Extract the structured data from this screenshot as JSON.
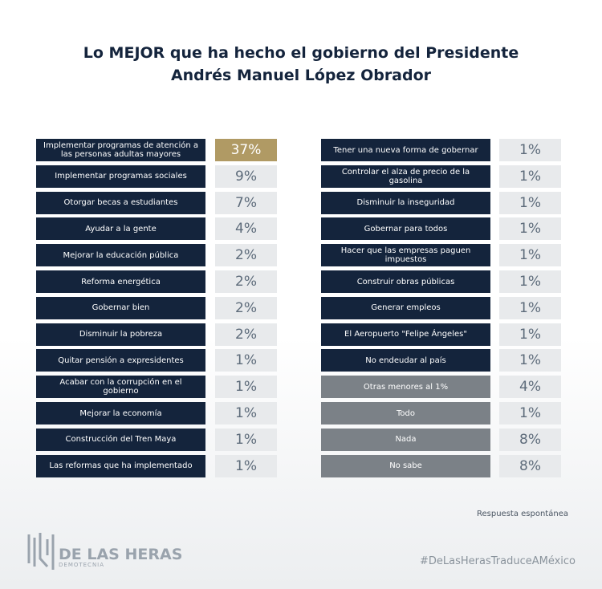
{
  "header": {
    "title_line1": "Lo MEJOR que ha hecho el gobierno del Presidente",
    "title_line2": "Andrés Manuel López Obrador"
  },
  "left": [
    {
      "label": "Implementar programas de atención a las personas adultas mayores",
      "value": "37%"
    },
    {
      "label": "Implementar programas sociales",
      "value": "9%"
    },
    {
      "label": "Otorgar becas a estudiantes",
      "value": "7%"
    },
    {
      "label": "Ayudar a la gente",
      "value": "4%"
    },
    {
      "label": "Mejorar la educación pública",
      "value": "2%"
    },
    {
      "label": "Reforma energética",
      "value": "2%"
    },
    {
      "label": "Gobernar bien",
      "value": "2%"
    },
    {
      "label": "Disminuir la pobreza",
      "value": "2%"
    },
    {
      "label": "Quitar pensión a expresidentes",
      "value": "1%"
    },
    {
      "label": "Acabar con la corrupción en el gobierno",
      "value": "1%"
    },
    {
      "label": "Mejorar la economía",
      "value": "1%"
    },
    {
      "label": "Construcción del Tren Maya",
      "value": "1%"
    },
    {
      "label": "Las reformas que ha implementado",
      "value": "1%"
    }
  ],
  "right": [
    {
      "label": "Tener una nueva forma de gobernar",
      "value": "1%"
    },
    {
      "label": "Controlar el alza de precio de la gasolina",
      "value": "1%"
    },
    {
      "label": "Disminuir la inseguridad",
      "value": "1%"
    },
    {
      "label": "Gobernar para todos",
      "value": "1%"
    },
    {
      "label": "Hacer que las empresas paguen impuestos",
      "value": "1%"
    },
    {
      "label": "Construir obras públicas",
      "value": "1%"
    },
    {
      "label": "Generar empleos",
      "value": "1%"
    },
    {
      "label": "El Aeropuerto \"Felipe Ángeles\"",
      "value": "1%"
    },
    {
      "label": "No endeudar al país",
      "value": "1%"
    },
    {
      "label": "Otras menores al 1%",
      "value": "4%"
    },
    {
      "label": "Todo",
      "value": "1%"
    },
    {
      "label": "Nada",
      "value": "8%"
    },
    {
      "label": "No sabe",
      "value": "8%"
    }
  ],
  "note": "Respuesta espontánea",
  "logo": {
    "name": "DE LAS HERAS",
    "subtitle": "DEMOTECNIA"
  },
  "hashtag": "#DeLasHerasTraduceAMéxico"
}
